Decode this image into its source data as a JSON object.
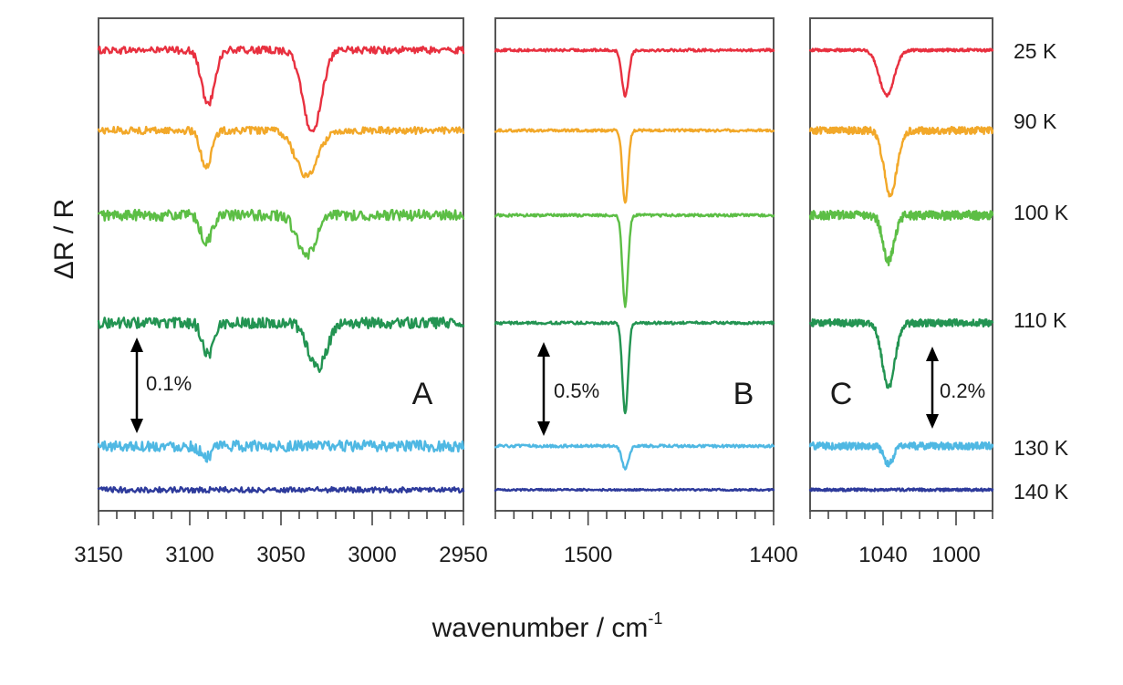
{
  "chart_data": {
    "type": "line",
    "title": "",
    "ylabel": "ΔR / R",
    "xlabel": "wavenumber / cm",
    "xlabel_superscript": "-1",
    "temperatures": [
      "25 K",
      "90 K",
      "100 K",
      "110 K",
      "130 K",
      "140 K"
    ],
    "colors": {
      "25 K": "#e8303f",
      "90 K": "#f2a829",
      "100 K": "#5cbe45",
      "110 K": "#239452",
      "130 K": "#4fb8e3",
      "140 K": "#2e3b9c"
    },
    "panels": [
      {
        "label": "A",
        "xlim": [
          3150,
          2950
        ],
        "tick_labels": [
          "3150",
          "3100",
          "3050",
          "3000",
          "2950"
        ],
        "tick_values": [
          3150,
          3100,
          3050,
          3000,
          2950
        ],
        "minor_step": 10,
        "scale_bar": "0.1%",
        "scale_value_percent": 0.1,
        "series": [
          {
            "temp": "25 K",
            "offset": 0.36,
            "noise": 0.004,
            "peaks": [
              {
                "center": 3090,
                "depth": 0.06,
                "width": 3.5
              },
              {
                "center": 3033,
                "depth": 0.09,
                "width": 5
              }
            ]
          },
          {
            "temp": "90 K",
            "offset": 0.27,
            "noise": 0.004,
            "peaks": [
              {
                "center": 3091,
                "depth": 0.04,
                "width": 3
              },
              {
                "center": 3036,
                "depth": 0.05,
                "width": 6
              }
            ]
          },
          {
            "temp": "100 K",
            "offset": 0.18,
            "noise": 0.006,
            "peaks": [
              {
                "center": 3091,
                "depth": 0.03,
                "width": 3
              },
              {
                "center": 3036,
                "depth": 0.045,
                "width": 5
              }
            ]
          },
          {
            "temp": "110 K",
            "offset": 0.06,
            "noise": 0.006,
            "peaks": [
              {
                "center": 3090,
                "depth": 0.035,
                "width": 3
              },
              {
                "center": 3030,
                "depth": 0.05,
                "width": 5
              }
            ]
          },
          {
            "temp": "130 K",
            "offset": -0.06,
            "noise": 0.006,
            "peaks": [
              {
                "center": 3091,
                "depth": 0.012,
                "width": 3
              }
            ]
          },
          {
            "temp": "140 K",
            "offset": -0.105,
            "noise": 0.003,
            "peaks": []
          }
        ]
      },
      {
        "label": "B",
        "xlim": [
          1550,
          1400
        ],
        "tick_labels": [
          "1500",
          "1400"
        ],
        "tick_values": [
          1500,
          1400
        ],
        "minor_step": 10,
        "scale_bar": "0.5%",
        "scale_value_percent": 0.5,
        "series": [
          {
            "temp": "25 K",
            "offset": 0.36,
            "noise": 0.0015,
            "peaks": [
              {
                "center": 1480,
                "depth": 0.05,
                "width": 1.8
              }
            ]
          },
          {
            "temp": "90 K",
            "offset": 0.27,
            "noise": 0.0015,
            "peaks": [
              {
                "center": 1480,
                "depth": 0.08,
                "width": 1.5
              }
            ]
          },
          {
            "temp": "100 K",
            "offset": 0.18,
            "noise": 0.0015,
            "peaks": [
              {
                "center": 1480,
                "depth": 0.1,
                "width": 1.5
              }
            ]
          },
          {
            "temp": "110 K",
            "offset": 0.06,
            "noise": 0.0015,
            "peaks": [
              {
                "center": 1480,
                "depth": 0.1,
                "width": 1.5
              }
            ]
          },
          {
            "temp": "130 K",
            "offset": -0.06,
            "noise": 0.0015,
            "peaks": [
              {
                "center": 1480,
                "depth": 0.025,
                "width": 1.8
              }
            ]
          },
          {
            "temp": "140 K",
            "offset": -0.105,
            "noise": 0.001,
            "peaks": []
          }
        ]
      },
      {
        "label": "C",
        "xlim": [
          1080,
          980
        ],
        "tick_labels": [
          "1040",
          "1000"
        ],
        "tick_values": [
          1040,
          1000
        ],
        "minor_step": 10,
        "scale_bar": "0.2%",
        "scale_value_percent": 0.2,
        "series": [
          {
            "temp": "25 K",
            "offset": 0.36,
            "noise": 0.0015,
            "peaks": [
              {
                "center": 1038,
                "depth": 0.05,
                "width": 4
              }
            ]
          },
          {
            "temp": "90 K",
            "offset": 0.27,
            "noise": 0.004,
            "peaks": [
              {
                "center": 1036,
                "depth": 0.07,
                "width": 3.5
              }
            ]
          },
          {
            "temp": "100 K",
            "offset": 0.18,
            "noise": 0.005,
            "peaks": [
              {
                "center": 1037,
                "depth": 0.05,
                "width": 3
              }
            ]
          },
          {
            "temp": "110 K",
            "offset": 0.06,
            "noise": 0.004,
            "peaks": [
              {
                "center": 1037,
                "depth": 0.07,
                "width": 3.5
              }
            ]
          },
          {
            "temp": "130 K",
            "offset": -0.06,
            "noise": 0.004,
            "peaks": [
              {
                "center": 1037,
                "depth": 0.02,
                "width": 2.5
              }
            ]
          },
          {
            "temp": "140 K",
            "offset": -0.105,
            "noise": 0.0015,
            "peaks": []
          }
        ]
      }
    ]
  }
}
